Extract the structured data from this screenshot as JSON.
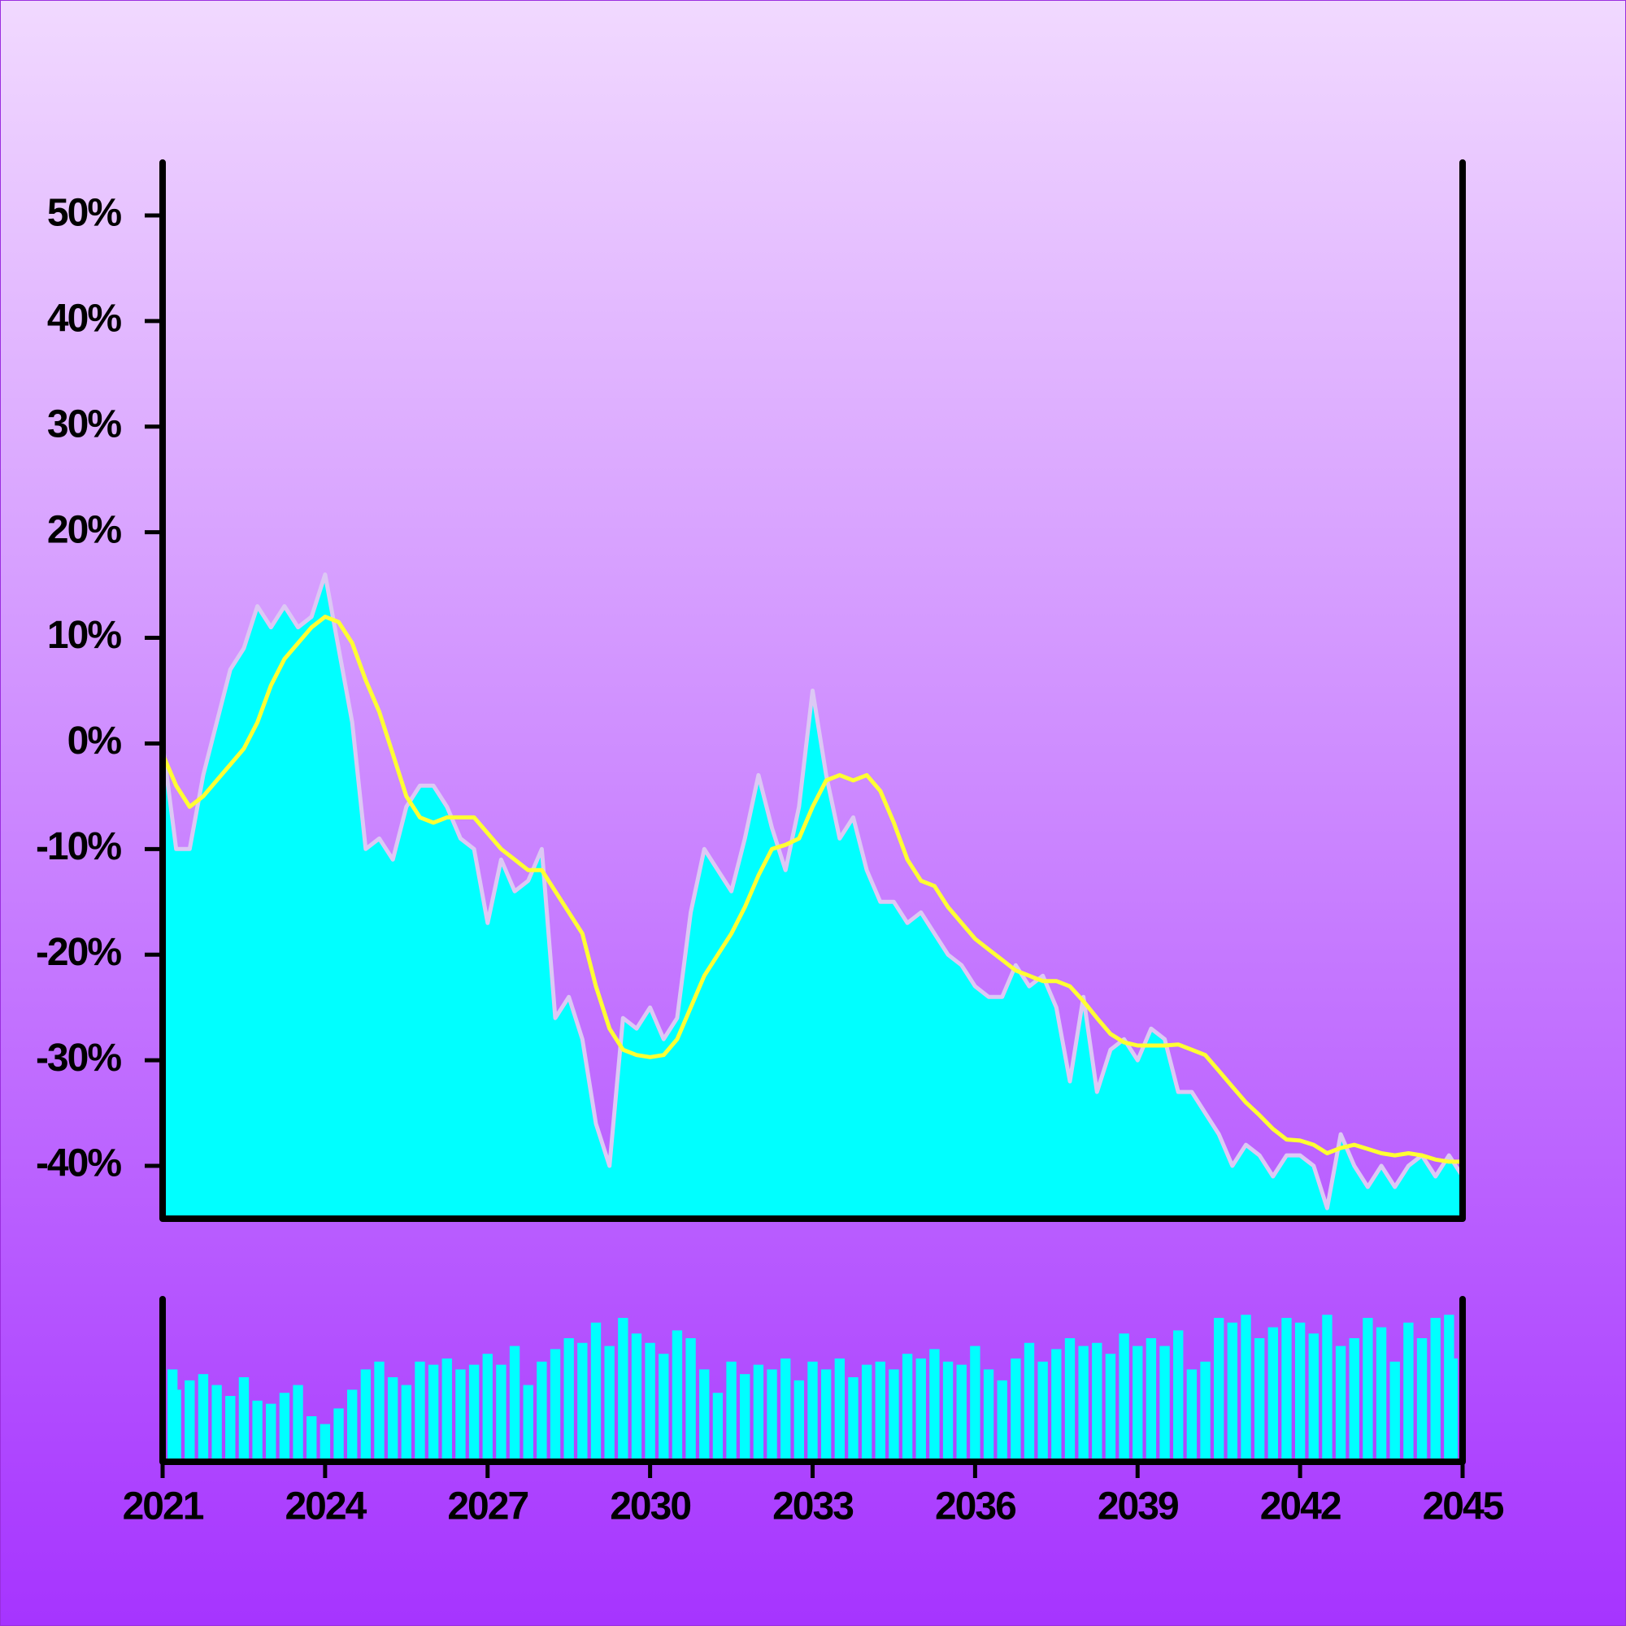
{
  "chart_data": [
    {
      "type": "area",
      "x": [
        2021,
        2021.25,
        2021.5,
        2021.75,
        2022,
        2022.25,
        2022.5,
        2022.75,
        2023,
        2023.25,
        2023.5,
        2023.75,
        2024,
        2024.25,
        2024.5,
        2024.75,
        2025,
        2025.25,
        2025.5,
        2025.75,
        2026,
        2026.25,
        2026.5,
        2026.75,
        2027,
        2027.25,
        2027.5,
        2027.75,
        2028,
        2028.25,
        2028.5,
        2028.75,
        2029,
        2029.25,
        2029.5,
        2029.75,
        2030,
        2030.25,
        2030.5,
        2030.75,
        2031,
        2031.25,
        2031.5,
        2031.75,
        2032,
        2032.25,
        2032.5,
        2032.75,
        2033,
        2033.25,
        2033.5,
        2033.75,
        2034,
        2034.25,
        2034.5,
        2034.75,
        2035,
        2035.25,
        2035.5,
        2035.75,
        2036,
        2036.25,
        2036.5,
        2036.75,
        2037,
        2037.25,
        2037.5,
        2037.75,
        2038,
        2038.25,
        2038.5,
        2038.75,
        2039,
        2039.25,
        2039.5,
        2039.75,
        2040,
        2040.25,
        2040.5,
        2040.75,
        2041,
        2041.25,
        2041.5,
        2041.75,
        2042,
        2042.25,
        2042.5,
        2042.75,
        2043,
        2043.25,
        2043.5,
        2043.75,
        2044,
        2044.25,
        2044.5,
        2044.75,
        2045
      ],
      "series": [
        {
          "color": "#00ffff",
          "line_color": "#dcc8f4",
          "values": [
            0,
            -10,
            -10,
            -3,
            2,
            7,
            9,
            13,
            11,
            13,
            11,
            12,
            16,
            9,
            2,
            -10,
            -9,
            -11,
            -6,
            -4,
            -4,
            -6,
            -9,
            -10,
            -17,
            -11,
            -14,
            -13,
            -10,
            -26,
            -24,
            -28,
            -36,
            -40,
            -26,
            -27,
            -25,
            -28,
            -26,
            -16,
            -10,
            -12,
            -14,
            -9,
            -3,
            -8,
            -12,
            -6,
            5,
            -3,
            -9,
            -7,
            -12,
            -15,
            -15,
            -17,
            -16,
            -18,
            -20,
            -21,
            -23,
            -24,
            -24,
            -21,
            -23,
            -22,
            -25,
            -32,
            -24,
            -33,
            -29,
            -28,
            -30,
            -27,
            -28,
            -33,
            -33,
            -35,
            -37,
            -40,
            -38,
            -39,
            -41,
            -39,
            -39,
            -40,
            -44,
            -37,
            -40,
            -42,
            -40,
            -42,
            -40,
            -39,
            -41,
            -39,
            -41
          ]
        },
        {
          "type": "line",
          "color": "#ffff33",
          "values": [
            -1,
            -4,
            -6,
            -5,
            -3.5,
            -2,
            -0.5,
            2,
            5.5,
            8,
            9.5,
            11,
            12,
            11.5,
            9.5,
            6,
            3,
            -1,
            -5,
            -7,
            -7.5,
            -7,
            -7,
            -7,
            -8.5,
            -10,
            -11,
            -12,
            -12,
            -14,
            -16,
            -18,
            -23,
            -27,
            -29,
            -29.5,
            -29.7,
            -29.5,
            -28,
            -25,
            -22,
            -20,
            -18,
            -15.5,
            -12.5,
            -10,
            -9.6,
            -9,
            -6,
            -3.5,
            -3,
            -3.5,
            -3,
            -4.5,
            -7.5,
            -11,
            -13,
            -13.5,
            -15.5,
            -17,
            -18.5,
            -19.5,
            -20.5,
            -21.5,
            -22,
            -22.5,
            -22.5,
            -23,
            -24.4,
            -26,
            -27.5,
            -28.3,
            -28.6,
            -28.6,
            -28.6,
            -28.5,
            -29,
            -29.5,
            -31,
            -32.5,
            -34,
            -35.2,
            -36.5,
            -37.5,
            -37.6,
            -38,
            -38.8,
            -38.3,
            -38,
            -38.4,
            -38.8,
            -39,
            -38.8,
            -39,
            -39.4,
            -39.6,
            -39.6
          ]
        }
      ],
      "xlim": [
        2021,
        2045
      ],
      "ylim": [
        -45,
        55
      ],
      "yticks": [
        {
          "value": -40,
          "label": "-40%"
        },
        {
          "value": -30,
          "label": "-30%"
        },
        {
          "value": -20,
          "label": "-20%"
        },
        {
          "value": -10,
          "label": "-10%"
        },
        {
          "value": 0,
          "label": "0%"
        },
        {
          "value": 10,
          "label": "10%"
        },
        {
          "value": 20,
          "label": "20%"
        },
        {
          "value": 30,
          "label": "30%"
        },
        {
          "value": 40,
          "label": "40%"
        },
        {
          "value": 50,
          "label": "50%"
        }
      ]
    },
    {
      "type": "bar",
      "color": "#00ffff",
      "x": [
        2021,
        2021.25,
        2021.5,
        2021.75,
        2022,
        2022.25,
        2022.5,
        2022.75,
        2023,
        2023.25,
        2023.5,
        2023.75,
        2024,
        2024.25,
        2024.5,
        2024.75,
        2025,
        2025.25,
        2025.5,
        2025.75,
        2026,
        2026.25,
        2026.5,
        2026.75,
        2027,
        2027.25,
        2027.5,
        2027.75,
        2028,
        2028.25,
        2028.5,
        2028.75,
        2029,
        2029.25,
        2029.5,
        2029.75,
        2030,
        2030.25,
        2030.5,
        2030.75,
        2031,
        2031.25,
        2031.5,
        2031.75,
        2032,
        2032.25,
        2032.5,
        2032.75,
        2033,
        2033.25,
        2033.5,
        2033.75,
        2034,
        2034.25,
        2034.5,
        2034.75,
        2035,
        2035.25,
        2035.5,
        2035.75,
        2036,
        2036.25,
        2036.5,
        2036.75,
        2037,
        2037.25,
        2037.5,
        2037.75,
        2038,
        2038.25,
        2038.5,
        2038.75,
        2039,
        2039.25,
        2039.5,
        2039.75,
        2040,
        2040.25,
        2040.5,
        2040.75,
        2041,
        2041.25,
        2041.5,
        2041.75,
        2042,
        2042.25,
        2042.5,
        2042.75,
        2043,
        2043.25,
        2043.5,
        2043.75,
        2044,
        2044.25,
        2044.5,
        2044.75,
        2045
      ],
      "values": [
        55,
        42,
        48,
        52,
        45,
        38,
        50,
        35,
        33,
        40,
        45,
        25,
        20,
        30,
        42,
        55,
        60,
        50,
        45,
        60,
        58,
        62,
        55,
        58,
        65,
        58,
        70,
        45,
        60,
        68,
        75,
        72,
        85,
        70,
        88,
        78,
        72,
        65,
        80,
        75,
        55,
        40,
        60,
        52,
        58,
        55,
        62,
        48,
        60,
        55,
        62,
        50,
        58,
        60,
        55,
        65,
        62,
        68,
        60,
        58,
        70,
        55,
        48,
        62,
        72,
        60,
        68,
        75,
        70,
        72,
        65,
        78,
        70,
        75,
        70,
        80,
        55,
        60,
        88,
        85,
        90,
        75,
        82,
        88,
        85,
        78,
        90,
        70,
        75,
        88,
        82,
        60,
        85,
        75,
        88,
        90,
        62
      ],
      "xlim": [
        2021,
        2045
      ],
      "ylim": [
        0,
        100
      ],
      "xticks": [
        2021,
        2024,
        2027,
        2030,
        2033,
        2036,
        2039,
        2042,
        2045
      ]
    }
  ]
}
